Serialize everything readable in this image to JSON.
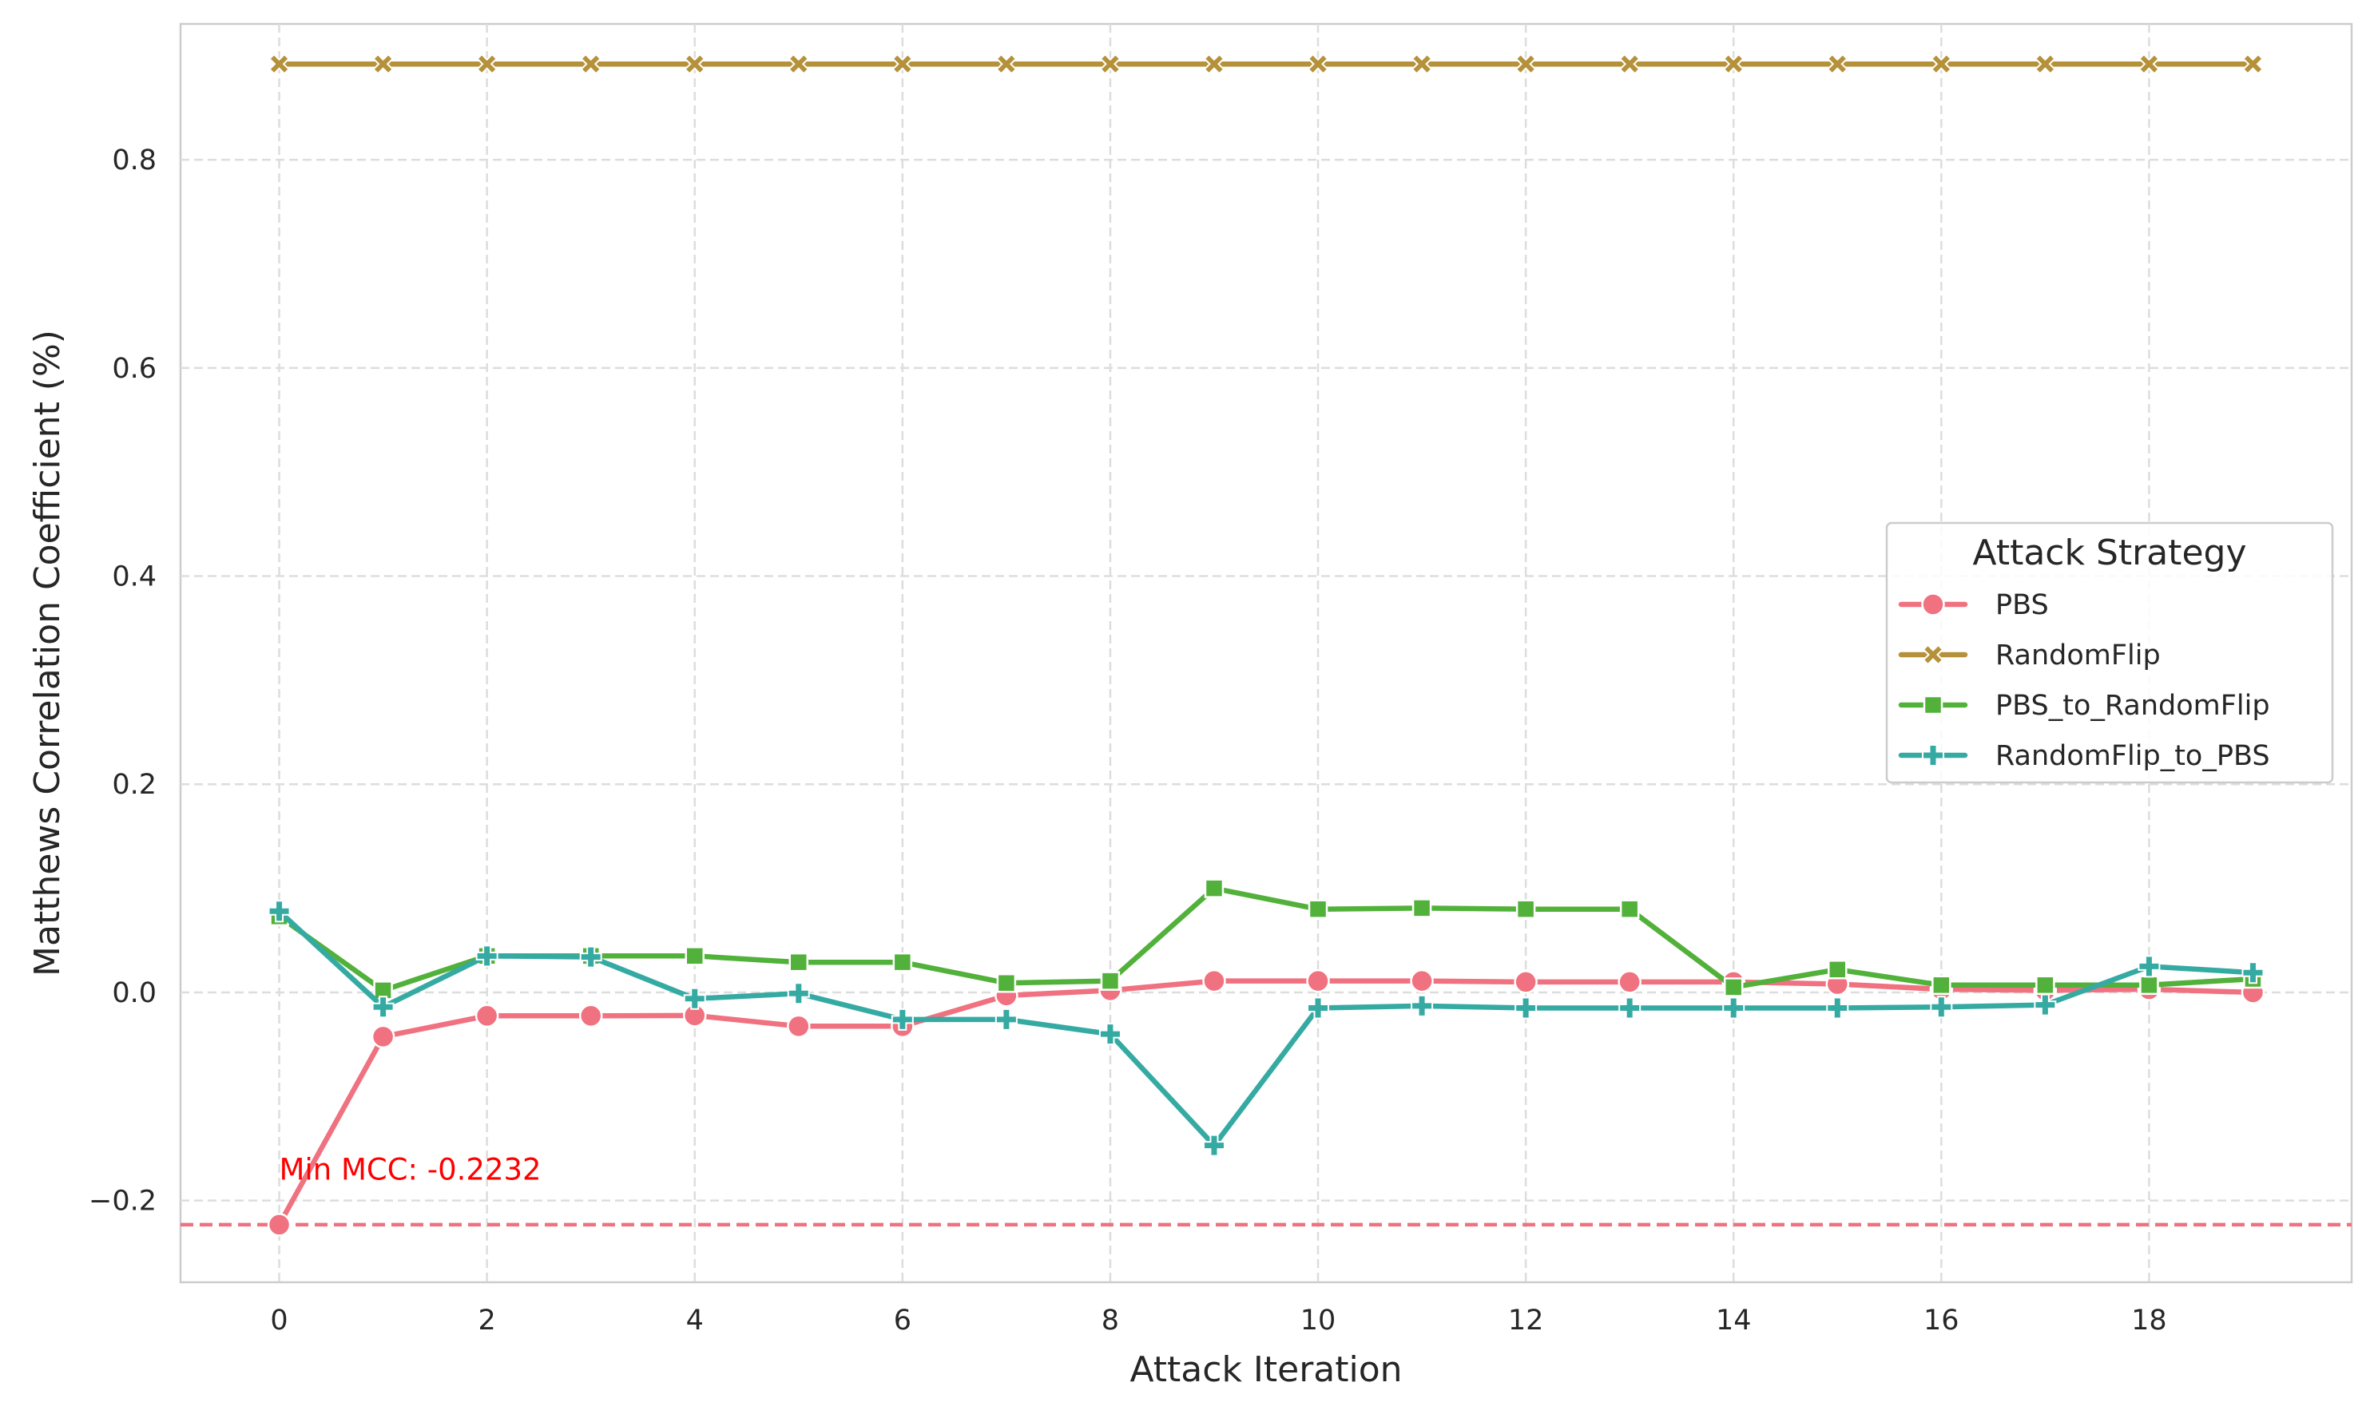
{
  "chart_data": {
    "type": "line",
    "xlabel": "Attack Iteration",
    "ylabel": "Matthews Correlation Coefficient (%)",
    "xlim": [
      -0.95,
      19.95
    ],
    "ylim": [
      -0.2785,
      0.9305
    ],
    "x": [
      0,
      1,
      2,
      3,
      4,
      5,
      6,
      7,
      8,
      9,
      10,
      11,
      12,
      13,
      14,
      15,
      16,
      17,
      18,
      19
    ],
    "x_ticks": [
      0,
      2,
      4,
      6,
      8,
      10,
      12,
      14,
      16,
      18
    ],
    "y_ticks": [
      -0.2,
      0.0,
      0.2,
      0.4,
      0.6,
      0.8
    ],
    "x_tick_labels": [
      "0",
      "2",
      "4",
      "6",
      "8",
      "10",
      "12",
      "14",
      "16",
      "18"
    ],
    "y_tick_labels": [
      "−0.2",
      "0.0",
      "0.2",
      "0.4",
      "0.6",
      "0.8"
    ],
    "grid": true,
    "legend": {
      "title": "Attack Strategy",
      "placement": "center-right"
    },
    "series": [
      {
        "name": "PBS",
        "color": "#f0717f",
        "marker": "circle",
        "values": [
          -0.2232,
          -0.0425,
          -0.0225,
          -0.0225,
          -0.0222,
          -0.0325,
          -0.0325,
          -0.003,
          0.002,
          0.011,
          0.011,
          0.011,
          0.01,
          0.01,
          0.01,
          0.008,
          0.003,
          0.002,
          0.003,
          0.0
        ]
      },
      {
        "name": "RandomFlip",
        "color": "#b5913a",
        "marker": "x",
        "values": [
          0.892,
          0.892,
          0.892,
          0.892,
          0.892,
          0.892,
          0.892,
          0.892,
          0.892,
          0.892,
          0.892,
          0.892,
          0.892,
          0.892,
          0.892,
          0.892,
          0.892,
          0.892,
          0.892,
          0.892
        ]
      },
      {
        "name": "PBS_to_RandomFlip",
        "color": "#52b13a",
        "marker": "square",
        "values": [
          0.073,
          0.002,
          0.035,
          0.035,
          0.035,
          0.029,
          0.029,
          0.009,
          0.011,
          0.1,
          0.08,
          0.081,
          0.08,
          0.08,
          0.005,
          0.022,
          0.007,
          0.007,
          0.007,
          0.013
        ]
      },
      {
        "name": "RandomFlip_to_PBS",
        "color": "#35aaa3",
        "marker": "plus",
        "values": [
          0.078,
          -0.014,
          0.035,
          0.034,
          -0.006,
          -0.001,
          -0.026,
          -0.026,
          -0.04,
          -0.147,
          -0.015,
          -0.013,
          -0.015,
          -0.015,
          -0.015,
          -0.015,
          -0.014,
          -0.012,
          0.025,
          0.019
        ]
      }
    ],
    "reference_line": {
      "y": -0.2232,
      "color": "#f0717f",
      "style": "dashed"
    },
    "annotation": {
      "text": "Min MCC: -0.2232",
      "x": 0,
      "y": -0.17,
      "color": "#ff0000"
    }
  }
}
